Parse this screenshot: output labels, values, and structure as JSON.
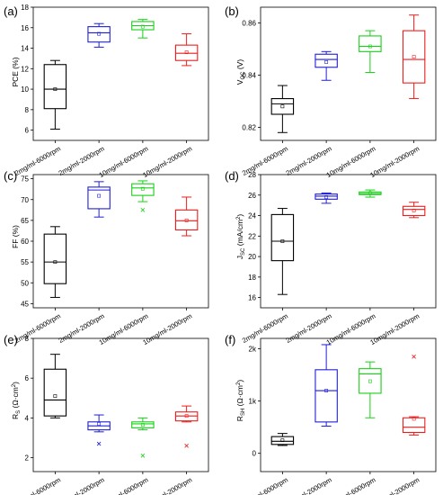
{
  "categories": [
    "2mg/ml-6000rpm",
    "2mg/ml-2000rpm",
    "10mg/ml-6000rpm",
    "10mg/ml-2000rpm"
  ],
  "series_colors": [
    "#000000",
    "#1f1fd6",
    "#17d017",
    "#ee1c1c"
  ],
  "chart_data": [
    {
      "type": "box",
      "panel_label": "(a)",
      "ylabel": "PCE (%)",
      "ylim": [
        5,
        18
      ],
      "yticks": [
        {
          "v": 6,
          "label": "6"
        },
        {
          "v": 8,
          "label": "8"
        },
        {
          "v": 10,
          "label": "10"
        },
        {
          "v": 12,
          "label": "12"
        },
        {
          "v": 14,
          "label": "14"
        },
        {
          "v": 16,
          "label": "16"
        },
        {
          "v": 18,
          "label": "18"
        }
      ],
      "boxes": [
        {
          "min": 6.1,
          "q1": 8.1,
          "median": 10.0,
          "q3": 12.4,
          "max": 12.8,
          "mean": 10.0,
          "outliers": []
        },
        {
          "min": 14.1,
          "q1": 14.6,
          "median": 15.5,
          "q3": 16.1,
          "max": 16.4,
          "mean": 15.4,
          "outliers": []
        },
        {
          "min": 15.0,
          "q1": 15.8,
          "median": 16.2,
          "q3": 16.6,
          "max": 16.8,
          "mean": 16.1,
          "outliers": []
        },
        {
          "min": 12.3,
          "q1": 12.8,
          "median": 13.5,
          "q3": 14.3,
          "max": 15.4,
          "mean": 13.6,
          "outliers": []
        }
      ]
    },
    {
      "type": "box",
      "panel_label": "(b)",
      "ylabel": "V_OC (V)",
      "ylim": [
        0.815,
        0.866
      ],
      "yticks": [
        {
          "v": 0.82,
          "label": "0.82"
        },
        {
          "v": 0.84,
          "label": "0.84"
        },
        {
          "v": 0.86,
          "label": "0.86"
        }
      ],
      "boxes": [
        {
          "min": 0.818,
          "q1": 0.825,
          "median": 0.829,
          "q3": 0.831,
          "max": 0.836,
          "mean": 0.828,
          "outliers": []
        },
        {
          "min": 0.838,
          "q1": 0.843,
          "median": 0.846,
          "q3": 0.848,
          "max": 0.849,
          "mean": 0.845,
          "outliers": []
        },
        {
          "min": 0.841,
          "q1": 0.849,
          "median": 0.851,
          "q3": 0.855,
          "max": 0.857,
          "mean": 0.851,
          "outliers": []
        },
        {
          "min": 0.831,
          "q1": 0.837,
          "median": 0.846,
          "q3": 0.857,
          "max": 0.863,
          "mean": 0.847,
          "outliers": []
        }
      ]
    },
    {
      "type": "box",
      "panel_label": "(c)",
      "ylabel": "FF (%)",
      "ylim": [
        44,
        76
      ],
      "yticks": [
        {
          "v": 45,
          "label": "45"
        },
        {
          "v": 50,
          "label": "50"
        },
        {
          "v": 55,
          "label": "55"
        },
        {
          "v": 60,
          "label": "60"
        },
        {
          "v": 65,
          "label": "65"
        },
        {
          "v": 70,
          "label": "70"
        },
        {
          "v": 75,
          "label": "75"
        }
      ],
      "boxes": [
        {
          "min": 46.5,
          "q1": 49.8,
          "median": 55.0,
          "q3": 61.7,
          "max": 63.5,
          "mean": 55.0,
          "outliers": []
        },
        {
          "min": 65.8,
          "q1": 67.8,
          "median": 72.3,
          "q3": 73.0,
          "max": 74.3,
          "mean": 70.9,
          "outliers": []
        },
        {
          "min": 69.5,
          "q1": 71.0,
          "median": 72.8,
          "q3": 73.8,
          "max": 74.5,
          "mean": 72.6,
          "outliers": [
            67.5
          ]
        },
        {
          "min": 61.3,
          "q1": 62.7,
          "median": 64.9,
          "q3": 67.5,
          "max": 70.6,
          "mean": 65.0,
          "outliers": []
        }
      ]
    },
    {
      "type": "box",
      "panel_label": "(d)",
      "ylabel": "J_SC (mA/cm²)",
      "ylim": [
        15,
        28
      ],
      "yticks": [
        {
          "v": 16,
          "label": "16"
        },
        {
          "v": 18,
          "label": "18"
        },
        {
          "v": 20,
          "label": "20"
        },
        {
          "v": 22,
          "label": "22"
        },
        {
          "v": 24,
          "label": "24"
        },
        {
          "v": 26,
          "label": "26"
        },
        {
          "v": 28,
          "label": "28"
        }
      ],
      "boxes": [
        {
          "min": 16.3,
          "q1": 19.6,
          "median": 21.5,
          "q3": 24.1,
          "max": 24.7,
          "mean": 21.5,
          "outliers": []
        },
        {
          "min": 25.2,
          "q1": 25.6,
          "median": 25.9,
          "q3": 26.1,
          "max": 26.2,
          "mean": 25.8,
          "outliers": []
        },
        {
          "min": 25.8,
          "q1": 26.05,
          "median": 26.15,
          "q3": 26.3,
          "max": 26.5,
          "mean": 26.2,
          "outliers": []
        },
        {
          "min": 23.8,
          "q1": 24.0,
          "median": 24.6,
          "q3": 24.9,
          "max": 25.3,
          "mean": 24.5,
          "outliers": []
        }
      ]
    },
    {
      "type": "box",
      "panel_label": "(e)",
      "ylabel": "R_S (Ω·cm²)",
      "ylim": [
        1.3,
        8.0
      ],
      "yticks": [
        {
          "v": 2,
          "label": "2"
        },
        {
          "v": 4,
          "label": "4"
        },
        {
          "v": 6,
          "label": "6"
        },
        {
          "v": 8,
          "label": "8"
        }
      ],
      "boxes": [
        {
          "min": 4.0,
          "q1": 4.1,
          "median": 4.9,
          "q3": 6.45,
          "max": 7.2,
          "mean": 5.1,
          "outliers": []
        },
        {
          "min": 3.3,
          "q1": 3.4,
          "median": 3.6,
          "q3": 3.8,
          "max": 4.15,
          "mean": 3.7,
          "outliers": [
            2.7
          ]
        },
        {
          "min": 3.4,
          "q1": 3.5,
          "median": 3.7,
          "q3": 3.8,
          "max": 4.0,
          "mean": 3.65,
          "outliers": [
            2.1
          ]
        },
        {
          "min": 3.8,
          "q1": 3.85,
          "median": 4.1,
          "q3": 4.3,
          "max": 4.6,
          "mean": 4.1,
          "outliers": [
            2.6
          ]
        }
      ]
    },
    {
      "type": "box",
      "panel_label": "(f)",
      "ylabel": "R_SH (Ω·cm²)",
      "ylim": [
        -350,
        2200
      ],
      "yticks": [
        {
          "v": 0,
          "label": "0"
        },
        {
          "v": 1000,
          "label": "1k"
        },
        {
          "v": 2000,
          "label": "2k"
        }
      ],
      "boxes": [
        {
          "min": 150,
          "q1": 170,
          "median": 230,
          "q3": 320,
          "max": 380,
          "mean": 250,
          "outliers": []
        },
        {
          "min": 520,
          "q1": 600,
          "median": 1200,
          "q3": 1600,
          "max": 2080,
          "mean": 1200,
          "outliers": []
        },
        {
          "min": 680,
          "q1": 1150,
          "median": 1520,
          "q3": 1620,
          "max": 1750,
          "mean": 1380,
          "outliers": []
        },
        {
          "min": 350,
          "q1": 400,
          "median": 500,
          "q3": 680,
          "max": 700,
          "mean": 660,
          "outliers": [
            1850
          ]
        }
      ]
    }
  ]
}
